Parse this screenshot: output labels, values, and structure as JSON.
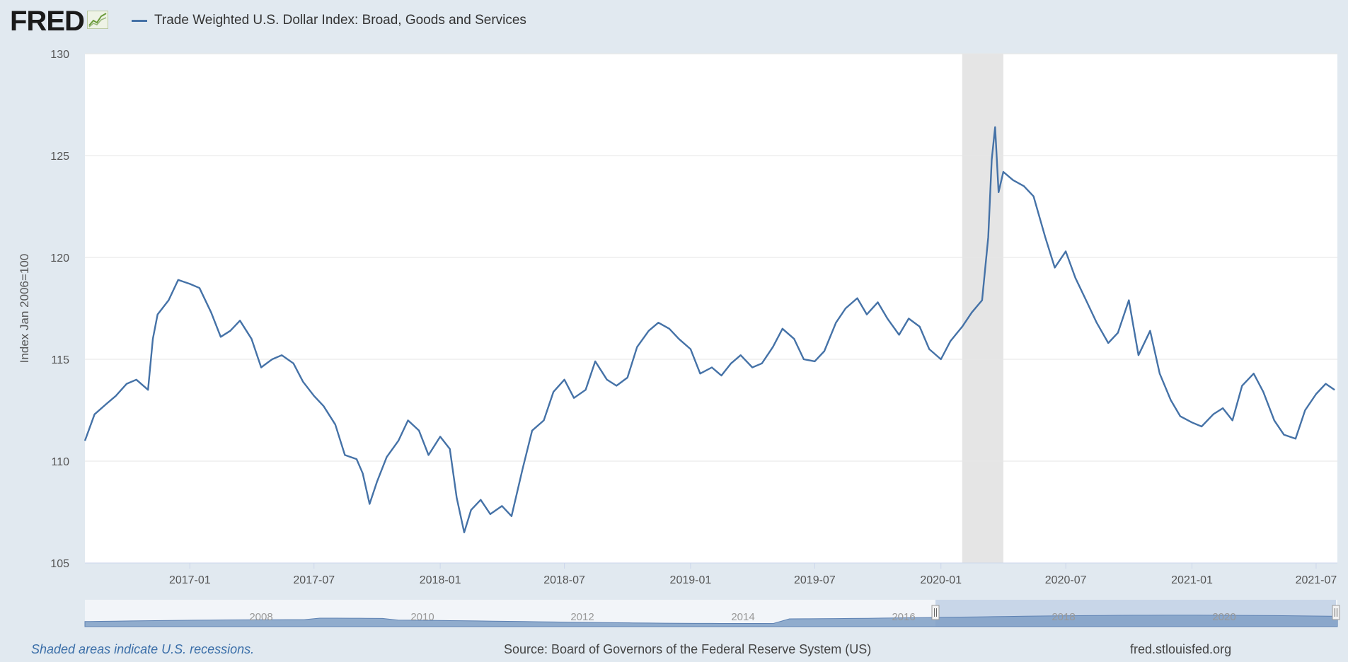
{
  "header": {
    "logo_text": "FRED",
    "series_title": "Trade Weighted U.S. Dollar Index: Broad, Goods and Services"
  },
  "colors": {
    "line": "#4572a7",
    "recession": "#e5e5e5",
    "background": "#e1e9f0",
    "plot": "#ffffff",
    "navigator_fill": "#7f9fc6"
  },
  "navigator": {
    "labels": [
      "2008",
      "2010",
      "2012",
      "2014",
      "2016",
      "2018",
      "2020"
    ]
  },
  "footer": {
    "note": "Shaded areas indicate U.S. recessions.",
    "source": "Source: Board of Governors of the Federal Reserve System (US)",
    "site": "fred.stlouisfed.org"
  },
  "chart_data": {
    "type": "line",
    "title": "Trade Weighted U.S. Dollar Index: Broad, Goods and Services",
    "xlabel": "",
    "ylabel": "Index Jan 2006=100",
    "ylim": [
      105,
      130
    ],
    "yticks": [
      105,
      110,
      115,
      120,
      125,
      130
    ],
    "xlim": [
      "2016-08-01",
      "2021-08-01"
    ],
    "xticks": [
      "2017-01",
      "2017-07",
      "2018-01",
      "2018-07",
      "2019-01",
      "2019-07",
      "2020-01",
      "2020-07",
      "2021-01",
      "2021-07"
    ],
    "grid": true,
    "legend": "top-left",
    "recessions": [
      [
        "2020-02-01",
        "2020-04-01"
      ]
    ],
    "series": [
      {
        "name": "Trade Weighted U.S. Dollar Index: Broad, Goods and Services",
        "x": [
          "2016-08-01",
          "2016-08-15",
          "2016-09-01",
          "2016-09-15",
          "2016-10-01",
          "2016-10-15",
          "2016-11-01",
          "2016-11-08",
          "2016-11-15",
          "2016-12-01",
          "2016-12-15",
          "2017-01-01",
          "2017-01-15",
          "2017-02-01",
          "2017-02-15",
          "2017-03-01",
          "2017-03-15",
          "2017-04-01",
          "2017-04-15",
          "2017-05-01",
          "2017-05-15",
          "2017-06-01",
          "2017-06-15",
          "2017-07-01",
          "2017-07-15",
          "2017-08-01",
          "2017-08-15",
          "2017-09-01",
          "2017-09-10",
          "2017-09-20",
          "2017-10-01",
          "2017-10-15",
          "2017-11-01",
          "2017-11-15",
          "2017-12-01",
          "2017-12-15",
          "2018-01-01",
          "2018-01-15",
          "2018-01-25",
          "2018-02-05",
          "2018-02-15",
          "2018-03-01",
          "2018-03-15",
          "2018-04-01",
          "2018-04-15",
          "2018-05-01",
          "2018-05-15",
          "2018-06-01",
          "2018-06-15",
          "2018-07-01",
          "2018-07-15",
          "2018-08-01",
          "2018-08-15",
          "2018-09-01",
          "2018-09-15",
          "2018-10-01",
          "2018-10-15",
          "2018-11-01",
          "2018-11-15",
          "2018-12-01",
          "2018-12-15",
          "2019-01-01",
          "2019-01-15",
          "2019-02-01",
          "2019-02-15",
          "2019-03-01",
          "2019-03-15",
          "2019-04-01",
          "2019-04-15",
          "2019-05-01",
          "2019-05-15",
          "2019-06-01",
          "2019-06-15",
          "2019-07-01",
          "2019-07-15",
          "2019-08-01",
          "2019-08-15",
          "2019-09-01",
          "2019-09-15",
          "2019-10-01",
          "2019-10-15",
          "2019-11-01",
          "2019-11-15",
          "2019-12-01",
          "2019-12-15",
          "2020-01-01",
          "2020-01-15",
          "2020-02-01",
          "2020-02-15",
          "2020-03-01",
          "2020-03-10",
          "2020-03-15",
          "2020-03-20",
          "2020-03-25",
          "2020-04-01",
          "2020-04-15",
          "2020-05-01",
          "2020-05-15",
          "2020-06-01",
          "2020-06-15",
          "2020-07-01",
          "2020-07-15",
          "2020-08-01",
          "2020-08-15",
          "2020-09-01",
          "2020-09-15",
          "2020-10-01",
          "2020-10-15",
          "2020-11-01",
          "2020-11-15",
          "2020-12-01",
          "2020-12-15",
          "2021-01-01",
          "2021-01-15",
          "2021-02-01",
          "2021-02-15",
          "2021-03-01",
          "2021-03-15",
          "2021-04-01",
          "2021-04-15",
          "2021-05-01",
          "2021-05-15",
          "2021-06-01",
          "2021-06-15",
          "2021-07-01",
          "2021-07-15",
          "2021-07-28"
        ],
        "values": [
          111.0,
          112.3,
          112.8,
          113.2,
          113.8,
          114.0,
          113.5,
          116.0,
          117.2,
          117.9,
          118.9,
          118.7,
          118.5,
          117.3,
          116.1,
          116.4,
          116.9,
          116.0,
          114.6,
          115.0,
          115.2,
          114.8,
          113.9,
          113.2,
          112.7,
          111.8,
          110.3,
          110.1,
          109.4,
          107.9,
          109.0,
          110.2,
          111.0,
          112.0,
          111.5,
          110.3,
          111.2,
          110.6,
          108.2,
          106.5,
          107.6,
          108.1,
          107.4,
          107.8,
          107.3,
          109.6,
          111.5,
          112.0,
          113.4,
          114.0,
          113.1,
          113.5,
          114.9,
          114.0,
          113.7,
          114.1,
          115.6,
          116.4,
          116.8,
          116.5,
          116.0,
          115.5,
          114.3,
          114.6,
          114.2,
          114.8,
          115.2,
          114.6,
          114.8,
          115.6,
          116.5,
          116.0,
          115.0,
          114.9,
          115.4,
          116.8,
          117.5,
          118.0,
          117.2,
          117.8,
          117.0,
          116.2,
          117.0,
          116.6,
          115.5,
          115.0,
          115.9,
          116.6,
          117.3,
          117.9,
          121.0,
          124.8,
          126.4,
          123.2,
          124.2,
          123.8,
          123.5,
          123.0,
          121.0,
          119.5,
          120.3,
          119.0,
          117.8,
          116.8,
          115.8,
          116.3,
          117.9,
          115.2,
          116.4,
          114.3,
          113.0,
          112.2,
          111.9,
          111.7,
          112.3,
          112.6,
          112.0,
          113.7,
          114.3,
          113.4,
          112.0,
          111.3,
          111.1,
          112.5,
          113.3,
          113.8,
          113.5
        ]
      }
    ]
  }
}
